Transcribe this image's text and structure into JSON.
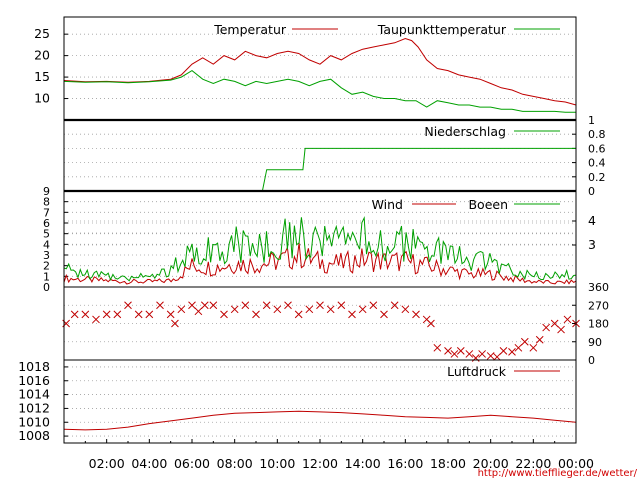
{
  "colors": {
    "temperature": "#c00000",
    "dewpoint": "#00a000",
    "grid": "#a0a0a0",
    "axis": "#000000",
    "url": "#d00000"
  },
  "footer": {
    "url": "http://www.tiefflieger.de/wetter/"
  },
  "chart_data": {
    "type": "line",
    "x_axis": {
      "range_hours": [
        0,
        24
      ],
      "tick_labels": [
        "02:00",
        "04:00",
        "06:00",
        "08:00",
        "10:00",
        "12:00",
        "14:00",
        "16:00",
        "18:00",
        "20:00",
        "22:00",
        "00:00"
      ]
    },
    "panels": [
      {
        "id": "temperature",
        "ylim": [
          5,
          29
        ],
        "left_ticks": [
          "10",
          "15",
          "20",
          "25"
        ],
        "grid": true,
        "legend_position": "top-right",
        "series": [
          {
            "name": "Temperatur",
            "color": "#c00000",
            "x": [
              0,
              1,
              2,
              3,
              4,
              5,
              5.5,
              6,
              6.5,
              7,
              7.5,
              8,
              8.5,
              9,
              9.5,
              10,
              10.5,
              11,
              11.5,
              12,
              12.5,
              13,
              13.5,
              14,
              14.5,
              15,
              15.5,
              16,
              16.3,
              16.6,
              17,
              17.5,
              18,
              18.5,
              19,
              19.5,
              20,
              20.5,
              21,
              21.5,
              22,
              22.5,
              23,
              23.5,
              24
            ],
            "y": [
              14.2,
              13.9,
              14,
              13.8,
              14,
              14.5,
              15.5,
              18,
              19.5,
              18,
              20,
              19,
              21,
              20,
              19.5,
              20.5,
              21,
              20.5,
              19,
              18,
              20,
              19,
              20.5,
              21.5,
              22,
              22.5,
              23,
              24,
              23.5,
              22,
              19,
              17,
              16.5,
              15.5,
              15,
              14.5,
              13.5,
              12.5,
              12,
              11,
              10.5,
              10,
              9.5,
              9.2,
              8.5
            ]
          },
          {
            "name": "Taupunkttemperatur",
            "color": "#00a000",
            "x": [
              0,
              1,
              2,
              3,
              4,
              5,
              5.5,
              6,
              6.5,
              7,
              7.5,
              8,
              8.5,
              9,
              9.5,
              10,
              10.5,
              11,
              11.5,
              12,
              12.5,
              13,
              13.5,
              14,
              14.5,
              15,
              15.5,
              16,
              16.5,
              17,
              17.5,
              18,
              18.5,
              19,
              19.5,
              20,
              20.5,
              21,
              21.5,
              22,
              22.5,
              23,
              23.5,
              24
            ],
            "y": [
              14,
              13.8,
              13.9,
              13.7,
              13.9,
              14.3,
              15,
              16.5,
              14.5,
              13.5,
              14.5,
              14,
              13,
              14,
              13.5,
              14,
              14.5,
              14,
              13,
              14,
              14.5,
              12.5,
              11,
              11.5,
              10.5,
              10,
              10,
              9.5,
              9.5,
              8,
              9.5,
              9,
              8.5,
              8.5,
              8,
              8,
              7.5,
              7.5,
              7,
              7,
              7,
              7,
              6.8,
              6.8
            ]
          }
        ]
      },
      {
        "id": "precipitation",
        "ylim": [
          0,
          1
        ],
        "right_ticks": [
          "0",
          "0.2",
          "0.4",
          "0.6",
          "0.8",
          "1"
        ],
        "grid": true,
        "legend_position": "top-right",
        "series": [
          {
            "name": "Niederschlag",
            "color": "#00a000",
            "x": [
              9.3,
              9.5,
              11.2,
              11.3,
              24
            ],
            "y": [
              0,
              0.3,
              0.3,
              0.6,
              0.6
            ]
          }
        ]
      },
      {
        "id": "wind",
        "ylim": [
          0,
          9
        ],
        "left_ticks": [
          "0",
          "1",
          "2",
          "3",
          "4",
          "5",
          "6",
          "7",
          "8",
          "9"
        ],
        "right_ticks": [
          "3",
          "4"
        ],
        "grid": true,
        "legend_position": "top-right",
        "series": [
          {
            "name": "Wind",
            "color": "#c00000",
            "x": [
              0,
              1,
              2,
              3,
              4,
              5,
              5.5,
              6,
              7,
              8,
              9,
              10,
              11,
              12,
              13,
              14,
              15,
              16,
              17,
              18,
              19,
              20,
              21,
              22,
              23,
              24
            ],
            "y": [
              0.8,
              0.7,
              0.6,
              0.5,
              0.5,
              0.6,
              1.2,
              2,
              1.8,
              2.2,
              2.1,
              2.4,
              3,
              2.3,
              2.2,
              2.6,
              2.4,
              2.4,
              2,
              1.6,
              1.2,
              1.2,
              0.8,
              0.5,
              0.4,
              0.5
            ]
          },
          {
            "name": "Boeen",
            "color": "#00a000",
            "x": [
              0,
              1,
              2,
              3,
              4,
              5,
              5.5,
              6,
              7,
              8,
              9,
              10,
              11,
              12,
              13,
              14,
              15,
              16,
              17,
              18,
              19,
              20,
              21,
              22,
              23,
              24
            ],
            "y": [
              1.6,
              1.3,
              1,
              1,
              1.1,
              1.5,
              2.5,
              3.8,
              3.5,
              4,
              3.8,
              4.2,
              5,
              4,
              4,
              4.5,
              4.2,
              4,
              3.5,
              3,
              2.5,
              2.3,
              1.5,
              1.2,
              1,
              1.3
            ]
          }
        ]
      },
      {
        "id": "wind_direction",
        "type": "scatter",
        "ylim": [
          0,
          360
        ],
        "right_ticks": [
          "0",
          "90",
          "180",
          "270",
          "360"
        ],
        "grid": true,
        "series": [
          {
            "color": "#c00000",
            "x": [
              0.1,
              0.5,
              1,
              1.5,
              2,
              2.5,
              3,
              3.5,
              4,
              4.5,
              5,
              5.2,
              5.5,
              6,
              6.3,
              6.6,
              7,
              7.5,
              8,
              8.5,
              9,
              9.5,
              10,
              10.5,
              11,
              11.5,
              12,
              12.5,
              13,
              13.5,
              14,
              14.5,
              15,
              15.5,
              16,
              16.5,
              17,
              17.2,
              17.5,
              18,
              18.3,
              18.6,
              19,
              19.3,
              19.6,
              20,
              20.3,
              20.6,
              21,
              21.3,
              21.6,
              22,
              22.3,
              22.6,
              23,
              23.3,
              23.6,
              24
            ],
            "y": [
              180,
              225,
              225,
              200,
              225,
              225,
              270,
              225,
              225,
              270,
              225,
              180,
              250,
              270,
              240,
              270,
              270,
              225,
              250,
              270,
              225,
              270,
              250,
              270,
              225,
              250,
              270,
              250,
              270,
              225,
              250,
              270,
              225,
              270,
              250,
              225,
              200,
              180,
              60,
              45,
              30,
              45,
              30,
              10,
              30,
              20,
              15,
              45,
              40,
              60,
              90,
              60,
              100,
              160,
              180,
              150,
              200,
              180
            ]
          }
        ]
      },
      {
        "id": "pressure",
        "ylim": [
          1007,
          1019
        ],
        "left_ticks": [
          "1008",
          "1010",
          "1012",
          "1014",
          "1016",
          "1018"
        ],
        "grid": true,
        "legend_position": "top-right",
        "series": [
          {
            "name": "Luftdruck",
            "color": "#c00000",
            "x": [
              0,
              1,
              2,
              3,
              4,
              5,
              6,
              7,
              8,
              9,
              10,
              11,
              12,
              13,
              14,
              15,
              16,
              17,
              18,
              19,
              20,
              21,
              22,
              23,
              24
            ],
            "y": [
              1009,
              1008.9,
              1009,
              1009.3,
              1009.8,
              1010.2,
              1010.6,
              1011,
              1011.3,
              1011.4,
              1011.5,
              1011.6,
              1011.5,
              1011.4,
              1011.2,
              1011,
              1010.8,
              1010.7,
              1010.6,
              1010.8,
              1011,
              1010.8,
              1010.6,
              1010.3,
              1010
            ]
          }
        ]
      }
    ]
  }
}
